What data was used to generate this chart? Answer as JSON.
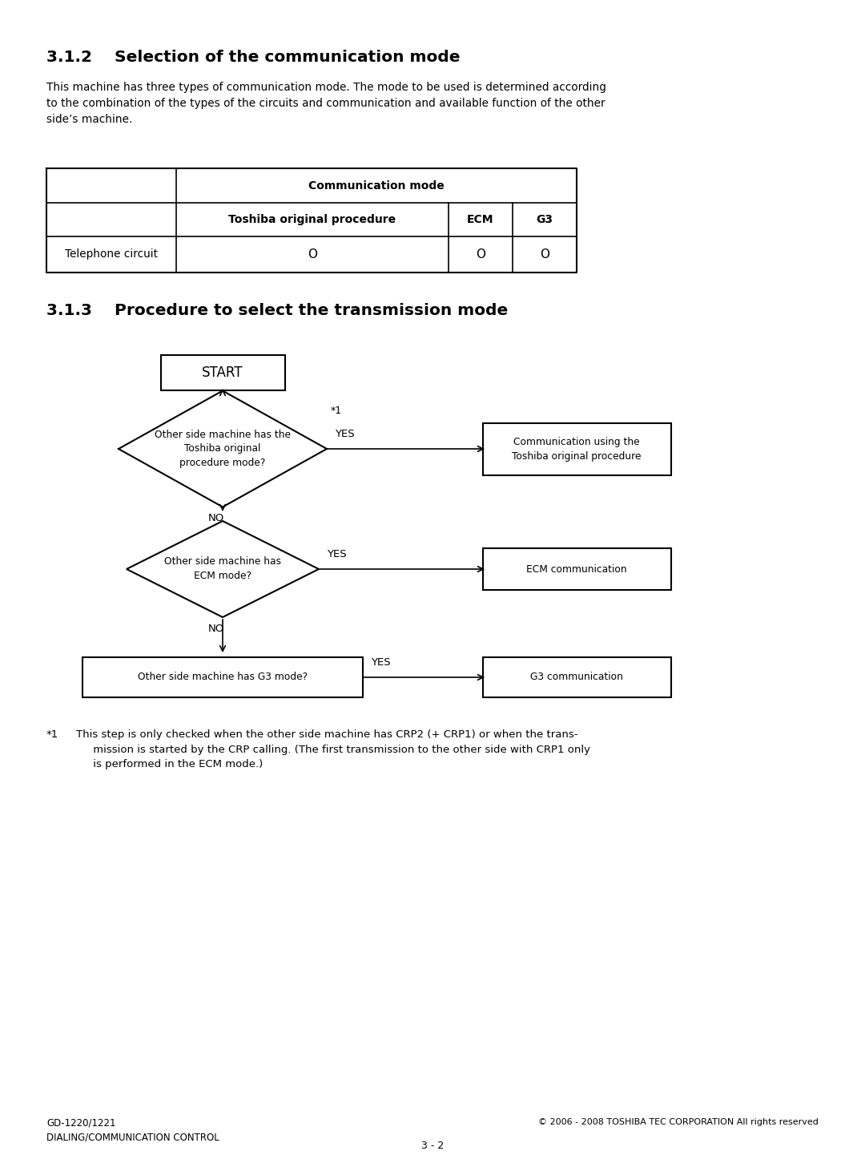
{
  "bg_color": "#ffffff",
  "section_312_title": "3.1.2    Selection of the communication mode",
  "section_312_body": "This machine has three types of communication mode. The mode to be used is determined according\nto the combination of the types of the circuits and communication and available function of the other\nside’s machine.",
  "table_header_top": "Communication mode",
  "table_col1": "Toshiba original procedure",
  "table_col2": "ECM",
  "table_col3": "G3",
  "table_row_label": "Telephone circuit",
  "table_circle": "O",
  "section_313_title": "3.1.3    Procedure to select the transmission mode",
  "flowchart": {
    "start_label": "START",
    "diamond1_label": "Other side machine has the\nToshiba original\nprocedure mode?",
    "diamond1_yes_label": "YES",
    "diamond1_note": "*1",
    "diamond1_no_label": "NO",
    "box1_label": "Communication using the\nToshiba original procedure",
    "diamond2_label": "Other side machine has\nECM mode?",
    "diamond2_yes_label": "YES",
    "diamond2_no_label": "NO",
    "box2_label": "ECM communication",
    "rect3_label": "Other side machine has G3 mode?",
    "rect3_yes_label": "YES",
    "box3_label": "G3 communication"
  },
  "footnote_marker": "*1",
  "footnote_text": "This step is only checked when the other side machine has CRP2 (+ CRP1) or when the trans-\n     mission is started by the CRP calling. (The first transmission to the other side with CRP1 only\n     is performed in the ECM mode.)",
  "footer_left_line1": "GD-1220/1221",
  "footer_left_line2": "DIALING/COMMUNICATION CONTROL",
  "footer_center": "3 - 2",
  "footer_right": "© 2006 - 2008 TOSHIBA TEC CORPORATION All rights reserved"
}
